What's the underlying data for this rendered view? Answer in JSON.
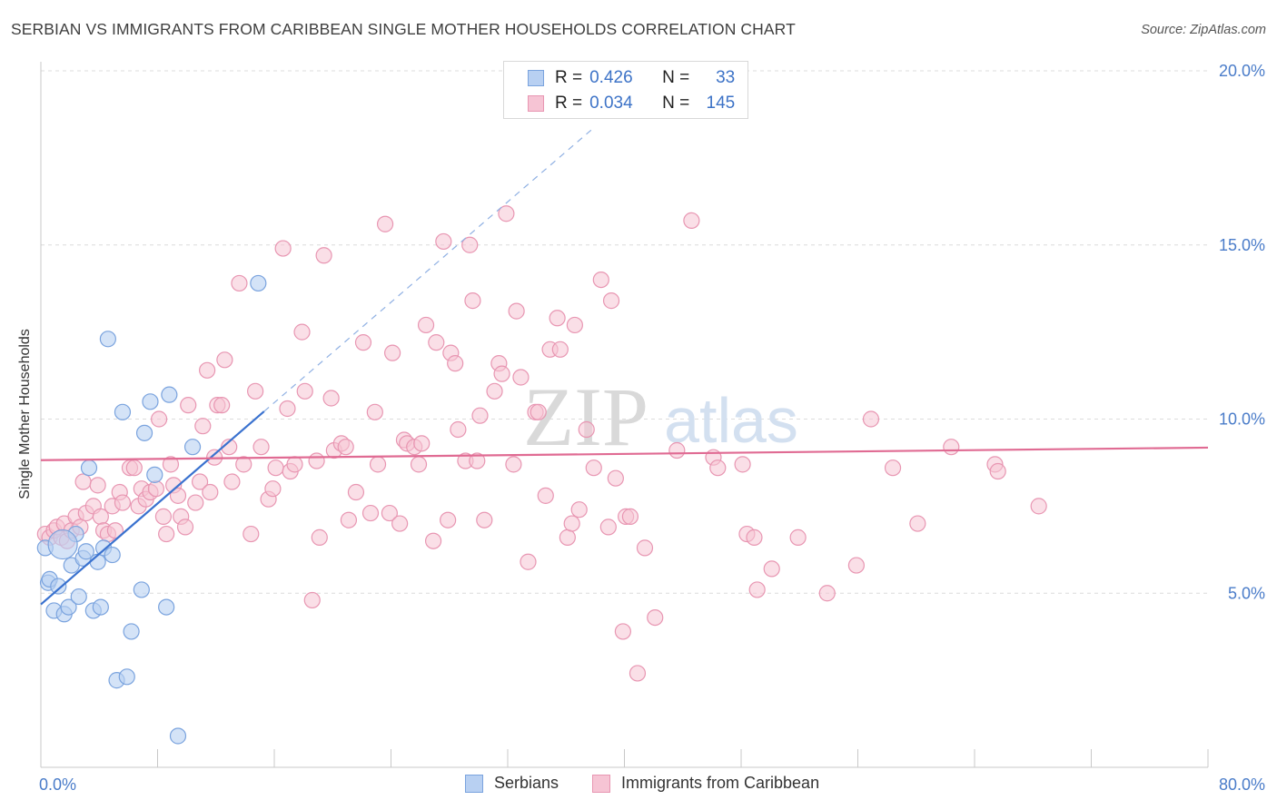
{
  "title": "SERBIAN VS IMMIGRANTS FROM CARIBBEAN SINGLE MOTHER HOUSEHOLDS CORRELATION CHART",
  "source": "Source: ZipAtlas.com",
  "watermark": {
    "zip": "ZIP",
    "atlas": "atlas"
  },
  "legend": {
    "rows": [
      {
        "r_label": "R =",
        "r_value": "0.426",
        "n_label": "N =",
        "n_value": "33"
      },
      {
        "r_label": "R =",
        "r_value": "0.034",
        "n_label": "N =",
        "n_value": "145"
      }
    ]
  },
  "colors": {
    "serbians_fill": "#b8d0f2",
    "serbians_stroke": "#7aa3de",
    "serbians_line": "#3a72cf",
    "caribbean_fill": "#f6c4d4",
    "caribbean_stroke": "#e896b2",
    "caribbean_line": "#e06b93",
    "tick_text": "#4a7cc9",
    "grid": "#dcdcdc"
  },
  "chart_data": {
    "type": "scatter",
    "title": "SERBIAN VS IMMIGRANTS FROM CARIBBEAN SINGLE MOTHER HOUSEHOLDS CORRELATION CHART",
    "xlabel": "",
    "ylabel": "Single Mother Households",
    "xlim": [
      0,
      80
    ],
    "ylim": [
      0,
      20
    ],
    "x_tick_labels": [
      "0.0%",
      "80.0%"
    ],
    "y_ticks": [
      5,
      10,
      15,
      20
    ],
    "y_tick_labels": [
      "5.0%",
      "10.0%",
      "15.0%",
      "20.0%"
    ],
    "grid": true,
    "legend_position": "bottom-center",
    "series": [
      {
        "name": "Serbians",
        "r": 0.426,
        "n": 33,
        "trend": {
          "x": [
            0,
            15.3
          ],
          "y": [
            4.68,
            10.22
          ],
          "extended_to": [
            38.0,
            18.4
          ]
        },
        "points": [
          [
            0.3,
            6.3
          ],
          [
            0.5,
            5.3
          ],
          [
            0.6,
            5.4
          ],
          [
            0.9,
            4.5
          ],
          [
            1.2,
            5.2
          ],
          [
            1.6,
            4.4
          ],
          [
            1.9,
            4.6
          ],
          [
            2.1,
            5.8
          ],
          [
            2.4,
            6.7
          ],
          [
            2.6,
            4.9
          ],
          [
            2.9,
            6.0
          ],
          [
            3.1,
            6.2
          ],
          [
            3.3,
            8.6
          ],
          [
            3.6,
            4.5
          ],
          [
            3.9,
            5.9
          ],
          [
            4.1,
            4.6
          ],
          [
            4.3,
            6.3
          ],
          [
            4.6,
            12.3
          ],
          [
            4.9,
            6.1
          ],
          [
            5.2,
            2.5
          ],
          [
            5.6,
            10.2
          ],
          [
            5.9,
            2.6
          ],
          [
            6.2,
            3.9
          ],
          [
            6.9,
            5.1
          ],
          [
            7.1,
            9.6
          ],
          [
            7.5,
            10.5
          ],
          [
            7.8,
            8.4
          ],
          [
            8.6,
            4.6
          ],
          [
            8.8,
            10.7
          ],
          [
            9.4,
            0.9
          ],
          [
            10.4,
            9.2
          ],
          [
            14.9,
            13.9
          ],
          [
            1.5,
            6.4
          ]
        ]
      },
      {
        "name": "Immigrants from Caribbean",
        "r": 0.034,
        "n": 145,
        "trend": {
          "x": [
            0,
            80
          ],
          "y": [
            8.82,
            9.18
          ]
        },
        "points": [
          [
            0.3,
            6.7
          ],
          [
            0.6,
            6.6
          ],
          [
            0.9,
            6.8
          ],
          [
            1.1,
            6.9
          ],
          [
            1.4,
            6.6
          ],
          [
            1.6,
            7.0
          ],
          [
            1.8,
            6.5
          ],
          [
            2.1,
            6.8
          ],
          [
            2.4,
            7.2
          ],
          [
            2.7,
            6.9
          ],
          [
            2.9,
            8.2
          ],
          [
            3.1,
            7.3
          ],
          [
            3.6,
            7.5
          ],
          [
            3.9,
            8.1
          ],
          [
            4.1,
            7.2
          ],
          [
            4.3,
            6.8
          ],
          [
            4.6,
            6.7
          ],
          [
            4.9,
            7.5
          ],
          [
            5.1,
            6.8
          ],
          [
            5.4,
            7.9
          ],
          [
            5.6,
            7.6
          ],
          [
            6.1,
            8.6
          ],
          [
            6.4,
            8.6
          ],
          [
            6.7,
            7.5
          ],
          [
            6.9,
            8.0
          ],
          [
            7.2,
            7.7
          ],
          [
            7.5,
            7.9
          ],
          [
            7.9,
            8.0
          ],
          [
            8.1,
            10.0
          ],
          [
            8.4,
            7.2
          ],
          [
            8.6,
            6.7
          ],
          [
            8.9,
            8.7
          ],
          [
            9.1,
            8.1
          ],
          [
            9.4,
            7.8
          ],
          [
            9.6,
            7.2
          ],
          [
            9.9,
            6.9
          ],
          [
            10.1,
            10.4
          ],
          [
            10.6,
            7.6
          ],
          [
            10.9,
            8.2
          ],
          [
            11.1,
            9.8
          ],
          [
            11.4,
            11.4
          ],
          [
            11.6,
            7.9
          ],
          [
            11.9,
            8.9
          ],
          [
            12.1,
            10.4
          ],
          [
            12.4,
            10.4
          ],
          [
            12.6,
            11.7
          ],
          [
            12.9,
            9.2
          ],
          [
            13.1,
            8.2
          ],
          [
            13.6,
            13.9
          ],
          [
            13.9,
            8.7
          ],
          [
            14.4,
            6.7
          ],
          [
            14.7,
            10.8
          ],
          [
            15.1,
            9.2
          ],
          [
            15.6,
            7.7
          ],
          [
            15.9,
            8.0
          ],
          [
            16.1,
            8.6
          ],
          [
            16.6,
            14.9
          ],
          [
            16.9,
            10.3
          ],
          [
            17.1,
            8.5
          ],
          [
            17.4,
            8.7
          ],
          [
            17.9,
            12.5
          ],
          [
            18.1,
            10.8
          ],
          [
            18.6,
            4.8
          ],
          [
            18.9,
            8.8
          ],
          [
            19.1,
            6.6
          ],
          [
            19.4,
            14.7
          ],
          [
            19.9,
            10.6
          ],
          [
            20.1,
            9.1
          ],
          [
            20.6,
            9.3
          ],
          [
            20.9,
            9.2
          ],
          [
            21.1,
            7.1
          ],
          [
            21.6,
            7.9
          ],
          [
            22.1,
            12.2
          ],
          [
            22.6,
            7.3
          ],
          [
            22.9,
            10.2
          ],
          [
            23.1,
            8.7
          ],
          [
            23.6,
            15.6
          ],
          [
            23.9,
            7.3
          ],
          [
            24.1,
            11.9
          ],
          [
            24.6,
            7.0
          ],
          [
            24.9,
            9.4
          ],
          [
            25.1,
            9.3
          ],
          [
            25.6,
            9.2
          ],
          [
            25.9,
            8.7
          ],
          [
            26.1,
            9.3
          ],
          [
            26.4,
            12.7
          ],
          [
            26.9,
            6.5
          ],
          [
            27.1,
            12.2
          ],
          [
            27.6,
            15.1
          ],
          [
            27.9,
            7.1
          ],
          [
            28.1,
            11.9
          ],
          [
            28.4,
            11.6
          ],
          [
            28.6,
            9.7
          ],
          [
            29.1,
            8.8
          ],
          [
            29.4,
            15.0
          ],
          [
            29.6,
            13.4
          ],
          [
            29.9,
            8.8
          ],
          [
            30.1,
            10.1
          ],
          [
            30.4,
            7.1
          ],
          [
            31.1,
            10.8
          ],
          [
            31.4,
            11.6
          ],
          [
            31.6,
            11.3
          ],
          [
            31.9,
            15.9
          ],
          [
            32.4,
            8.7
          ],
          [
            32.6,
            13.1
          ],
          [
            32.9,
            11.2
          ],
          [
            33.4,
            5.9
          ],
          [
            33.9,
            10.2
          ],
          [
            34.1,
            10.2
          ],
          [
            34.6,
            7.8
          ],
          [
            34.9,
            12.0
          ],
          [
            35.4,
            12.9
          ],
          [
            35.6,
            12.0
          ],
          [
            36.1,
            6.6
          ],
          [
            36.4,
            7.0
          ],
          [
            36.6,
            12.7
          ],
          [
            36.9,
            7.4
          ],
          [
            37.4,
            9.7
          ],
          [
            37.9,
            8.6
          ],
          [
            38.4,
            14.0
          ],
          [
            38.9,
            6.9
          ],
          [
            39.1,
            13.4
          ],
          [
            39.4,
            8.3
          ],
          [
            39.9,
            3.9
          ],
          [
            40.1,
            7.2
          ],
          [
            40.4,
            7.2
          ],
          [
            40.9,
            2.7
          ],
          [
            41.4,
            6.3
          ],
          [
            42.1,
            4.3
          ],
          [
            43.6,
            9.1
          ],
          [
            44.6,
            15.7
          ],
          [
            46.1,
            8.9
          ],
          [
            46.4,
            8.6
          ],
          [
            48.1,
            8.7
          ],
          [
            48.4,
            6.7
          ],
          [
            48.9,
            6.6
          ],
          [
            49.1,
            5.1
          ],
          [
            50.1,
            5.7
          ],
          [
            51.9,
            6.6
          ],
          [
            53.9,
            5.0
          ],
          [
            55.9,
            5.8
          ],
          [
            56.9,
            10.0
          ],
          [
            58.4,
            8.6
          ],
          [
            60.1,
            7.0
          ],
          [
            62.4,
            9.2
          ],
          [
            65.4,
            8.7
          ],
          [
            65.6,
            8.5
          ],
          [
            68.4,
            7.5
          ]
        ]
      }
    ]
  },
  "bottom_legend": {
    "serbians": "Serbians",
    "caribbean": "Immigrants from Caribbean"
  }
}
